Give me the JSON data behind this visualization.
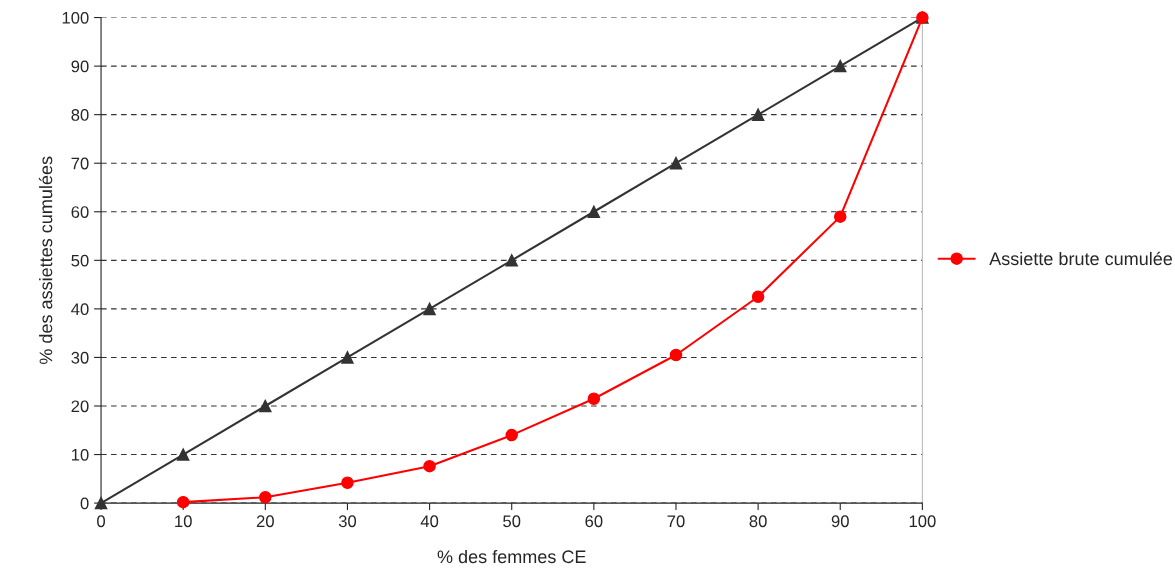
{
  "chart_data": {
    "type": "line",
    "xlabel": "% des femmes CE",
    "ylabel": "% des assiettes cumulées",
    "x": [
      0,
      10,
      20,
      30,
      40,
      50,
      60,
      70,
      80,
      90,
      100
    ],
    "series": [
      {
        "color": "#333333",
        "marker": "triangle",
        "values": [
          0,
          10,
          20,
          30,
          40,
          50,
          60,
          70,
          80,
          90,
          100
        ]
      },
      {
        "name": "Assiette brute cumulée",
        "color": "#ff0000",
        "marker": "circle",
        "x": [
          10,
          20,
          30,
          40,
          50,
          60,
          70,
          80,
          90,
          100
        ],
        "values": [
          0.2,
          1.2,
          4.2,
          7.6,
          14,
          21.5,
          30.5,
          42.5,
          59,
          100
        ]
      }
    ],
    "xlim": [
      0,
      100
    ],
    "xticks": [
      0,
      10,
      20,
      30,
      40,
      50,
      60,
      70,
      80,
      90,
      100
    ],
    "ylim": [
      0,
      100
    ],
    "yticks": [
      0,
      10,
      20,
      30,
      40,
      50,
      60,
      70,
      80,
      90,
      100
    ],
    "grid": "y",
    "legend": "right"
  }
}
